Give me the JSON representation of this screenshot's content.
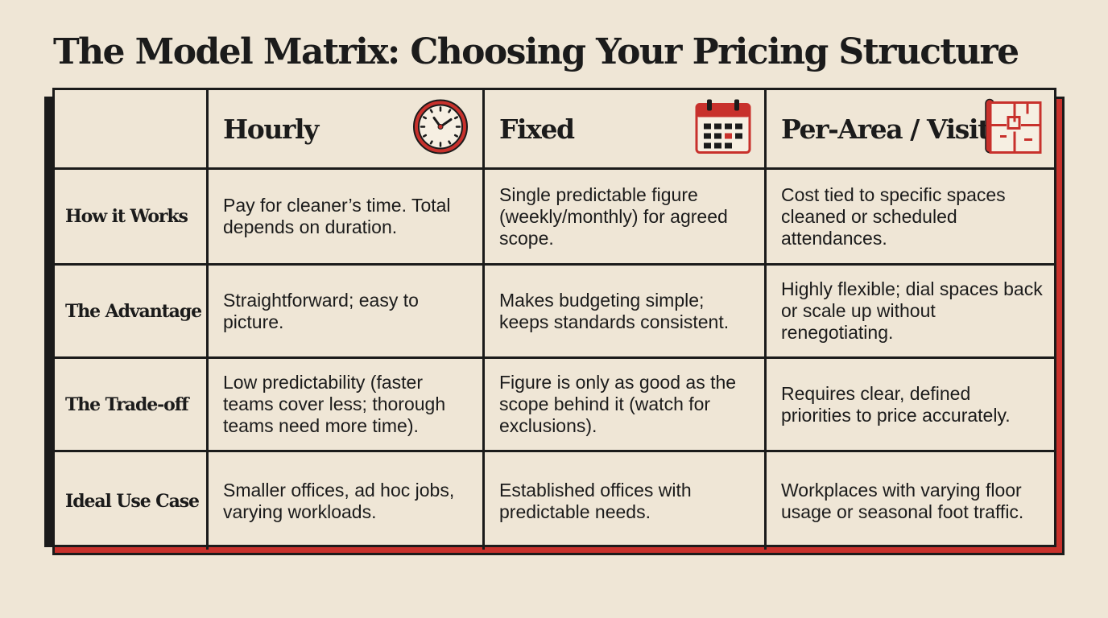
{
  "title": "The Model Matrix: Choosing Your Pricing Structure",
  "colors": {
    "background": "#efe6d6",
    "ink": "#1b1b1b",
    "accent_red": "#c8312c"
  },
  "columns": [
    {
      "label": "Hourly",
      "icon": "clock-icon"
    },
    {
      "label": "Fixed",
      "icon": "calendar-icon"
    },
    {
      "label": "Per-Area / Visit",
      "icon": "floor-plan-icon"
    }
  ],
  "rows": [
    {
      "label": "How it Works",
      "cells": [
        "Pay for cleaner’s time. Total depends on duration.",
        "Single predictable figure (weekly/monthly) for agreed scope.",
        "Cost tied to specific spaces cleaned or scheduled attendances."
      ]
    },
    {
      "label": "The Advantage",
      "cells": [
        "Straightforward; easy to picture.",
        "Makes budgeting simple; keeps standards consistent.",
        "Highly flexible; dial spaces back or scale up without renegotiating."
      ]
    },
    {
      "label": "The Trade-off",
      "cells": [
        "Low predictability (faster teams cover less; thorough teams need more time).",
        "Figure is only as good as the scope behind it (watch for exclusions).",
        "Requires clear, defined priorities to price accurately."
      ]
    },
    {
      "label": "Ideal Use Case",
      "cells": [
        "Smaller offices, ad hoc jobs, varying workloads.",
        "Established offices with predictable needs.",
        "Workplaces with varying floor usage or seasonal foot traffic."
      ]
    }
  ]
}
